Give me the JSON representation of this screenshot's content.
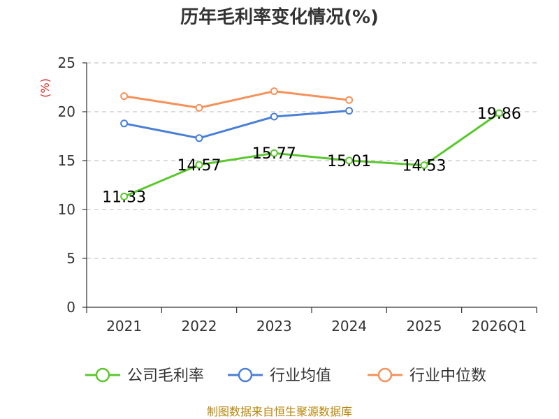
{
  "title": "历年毛利率变化情况(%)",
  "source": "制图数据来自恒生聚源数据库",
  "chart_data": {
    "type": "line",
    "title": "历年毛利率变化情况(%)",
    "ylabel": "(%)",
    "xlabel": "",
    "categories": [
      "2021",
      "2022",
      "2023",
      "2024",
      "2025",
      "2026Q1"
    ],
    "ylim": [
      0,
      25
    ],
    "yticks": [
      0,
      5,
      10,
      15,
      20,
      25
    ],
    "grid": "y-dashed",
    "legend_position": "bottom",
    "series": [
      {
        "name": "公司毛利率",
        "color": "#5bc72e",
        "values": [
          11.33,
          14.57,
          15.77,
          15.01,
          14.53,
          19.86
        ],
        "show_labels": true
      },
      {
        "name": "行业均值",
        "color": "#4a7fd6",
        "values": [
          18.8,
          17.3,
          19.5,
          20.1,
          null,
          null
        ],
        "show_labels": false
      },
      {
        "name": "行业中位数",
        "color": "#f5915a",
        "values": [
          21.6,
          20.4,
          22.1,
          21.2,
          null,
          null
        ],
        "show_labels": false
      }
    ]
  }
}
